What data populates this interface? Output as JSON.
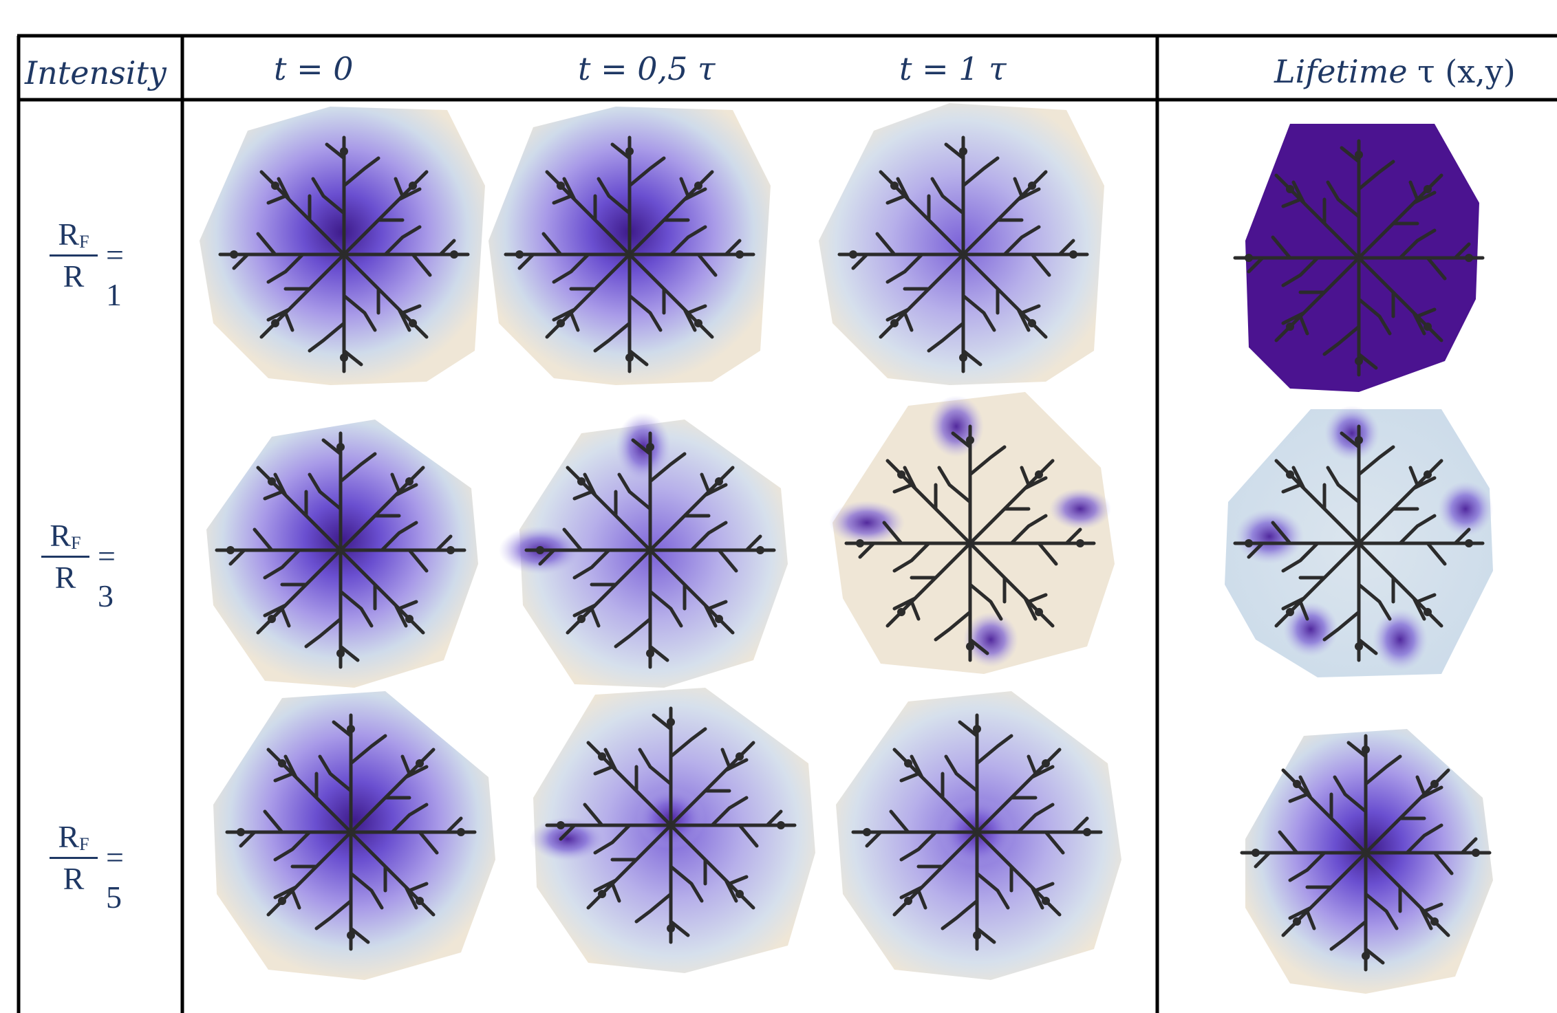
{
  "header": {
    "intensity": "Intensity",
    "col_t0": "t = 0",
    "col_t05": "t = 0,5 τ",
    "col_t1": "t = 1 τ",
    "lifetime_word": "Lifetime",
    "lifetime_rest": " τ (x,y)"
  },
  "rows": [
    {
      "num": "R",
      "num_sub": "F",
      "den": "R",
      "value": "= 1"
    },
    {
      "num": "R",
      "num_sub": "F",
      "den": "R",
      "value": "= 3"
    },
    {
      "num": "R",
      "num_sub": "F",
      "den": "R",
      "value": "= 5"
    }
  ],
  "colors": {
    "border": "#000000",
    "text": "#1f3864",
    "background_hull": "#efe6d6",
    "low": "#c9d8ea",
    "mid": "#8f7fe0",
    "high": "#5a2aa8",
    "lifetime_uniform": "#4b1390",
    "fractal": "#2b2b2b"
  }
}
